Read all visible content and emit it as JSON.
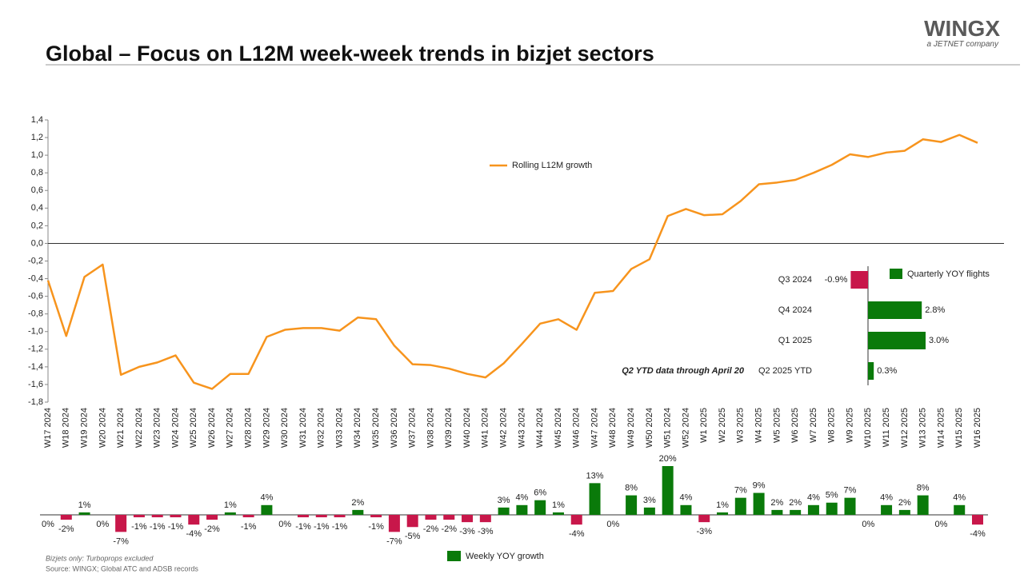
{
  "header": {
    "title": "Global – Focus on L12M week-week trends in bizjet sectors",
    "logo": "WINGX",
    "tagline": "a JETNET company"
  },
  "notes": [
    "Bizjets only: Turboprops excluded",
    "Source: WINGX; Global ATC and ADSB records"
  ],
  "chart_data": [
    {
      "type": "line",
      "categories": [
        "W17 2024",
        "W18 2024",
        "W19 2024",
        "W20 2024",
        "W21 2024",
        "W22 2024",
        "W23 2024",
        "W24 2024",
        "W25 2024",
        "W26 2024",
        "W27 2024",
        "W28 2024",
        "W29 2024",
        "W30 2024",
        "W31 2024",
        "W32 2024",
        "W33 2024",
        "W34 2024",
        "W35 2024",
        "W36 2024",
        "W37 2024",
        "W38 2024",
        "W39 2024",
        "W40 2024",
        "W41 2024",
        "W42 2024",
        "W43 2024",
        "W44 2024",
        "W45 2024",
        "W46 2024",
        "W47 2024",
        "W48 2024",
        "W49 2024",
        "W50 2024",
        "W51 2024",
        "W52 2024",
        "W1 2025",
        "W2 2025",
        "W3 2025",
        "W4 2025",
        "W5 2025",
        "W6 2025",
        "W7 2025",
        "W8 2025",
        "W9 2025",
        "W10 2025",
        "W11 2025",
        "W12 2025",
        "W13 2025",
        "W14 2025",
        "W15 2025",
        "W16 2025"
      ],
      "series": [
        {
          "name": "Rolling L12M growth",
          "color": "#f7941d",
          "values": [
            -0.42,
            -1.05,
            -0.38,
            -0.24,
            -1.49,
            -1.4,
            -1.35,
            -1.27,
            -1.58,
            -1.65,
            -1.48,
            -1.48,
            -1.06,
            -0.98,
            -0.96,
            -0.96,
            -0.99,
            -0.84,
            -0.86,
            -1.16,
            -1.37,
            -1.38,
            -1.42,
            -1.48,
            -1.52,
            -1.36,
            -1.14,
            -0.91,
            -0.86,
            -0.98,
            -0.56,
            -0.54,
            -0.29,
            -0.18,
            0.31,
            0.39,
            0.32,
            0.33,
            0.48,
            0.67,
            0.69,
            0.72,
            0.8,
            0.89,
            1.01,
            0.98,
            1.03,
            1.05,
            1.18,
            1.15,
            1.23,
            1.14
          ]
        }
      ],
      "ylim": [
        -1.8,
        1.4
      ],
      "yticks": [
        {
          "value": 1.4,
          "label": "1,4"
        },
        {
          "value": 1.2,
          "label": "1,2"
        },
        {
          "value": 1.0,
          "label": "1,0"
        },
        {
          "value": 0.8,
          "label": "0,8"
        },
        {
          "value": 0.6,
          "label": "0,6"
        },
        {
          "value": 0.4,
          "label": "0,4"
        },
        {
          "value": 0.2,
          "label": "0,2"
        },
        {
          "value": 0,
          "label": "0,0"
        },
        {
          "value": -0.2,
          "label": "-0,2"
        },
        {
          "value": -0.4,
          "label": "-0,4"
        },
        {
          "value": -0.6,
          "label": "-0,6"
        },
        {
          "value": -0.8,
          "label": "-0,8"
        },
        {
          "value": -1.0,
          "label": "-1,0"
        },
        {
          "value": -1.2,
          "label": "-1,2"
        },
        {
          "value": -1.4,
          "label": "-1,4"
        },
        {
          "value": -1.6,
          "label": "-1,6"
        },
        {
          "value": -1.8,
          "label": "-1,8"
        }
      ]
    },
    {
      "type": "bar",
      "series": [
        {
          "name": "Weekly YOY growth",
          "color": "#0a7a0a",
          "negative_color": "#c8174a",
          "values": [
            0,
            -2,
            1,
            0,
            -7,
            -1,
            -1,
            -1,
            -4,
            -2,
            1,
            -1,
            4,
            0,
            -1,
            -1,
            -1,
            2,
            -1,
            -7,
            -5,
            -2,
            -2,
            -3,
            -3,
            3,
            4,
            6,
            1,
            -4,
            13,
            0,
            8,
            3,
            20,
            4,
            -3,
            1,
            7,
            9,
            2,
            2,
            4,
            5,
            7,
            0,
            4,
            2,
            8,
            0,
            4,
            -4
          ],
          "value_labels": [
            "0%",
            "-2%",
            "1%",
            "0%",
            "-7%",
            "-1%",
            "-1%",
            "-1%",
            "-4%",
            "-2%",
            "1%",
            "-1%",
            "4%",
            "0%",
            "-1%",
            "-1%",
            "-1%",
            "2%",
            "-1%",
            "-7%",
            "-5%",
            "-2%",
            "-2%",
            "-3%",
            "-3%",
            "3%",
            "4%",
            "6%",
            "1%",
            "-4%",
            "13%",
            "0%",
            "8%",
            "3%",
            "20%",
            "4%",
            "-3%",
            "1%",
            "7%",
            "9%",
            "2%",
            "2%",
            "4%",
            "5%",
            "7%",
            "0%",
            "4%",
            "2%",
            "8%",
            "0%",
            "4%",
            "-4%"
          ]
        }
      ]
    },
    {
      "type": "hbar",
      "annotation": "Q2 YTD data through April 20",
      "categories": [
        "Q3 2024",
        "Q4 2024",
        "Q1 2025",
        "Q2 2025 YTD"
      ],
      "series": [
        {
          "name": "Quarterly YOY flights",
          "color": "#0a7a0a",
          "negative_color": "#c8174a",
          "values": [
            -0.9,
            2.8,
            3.0,
            0.3
          ],
          "value_labels": [
            "-0.9%",
            "2.8%",
            "3.0%",
            "0.3%"
          ]
        }
      ]
    }
  ]
}
